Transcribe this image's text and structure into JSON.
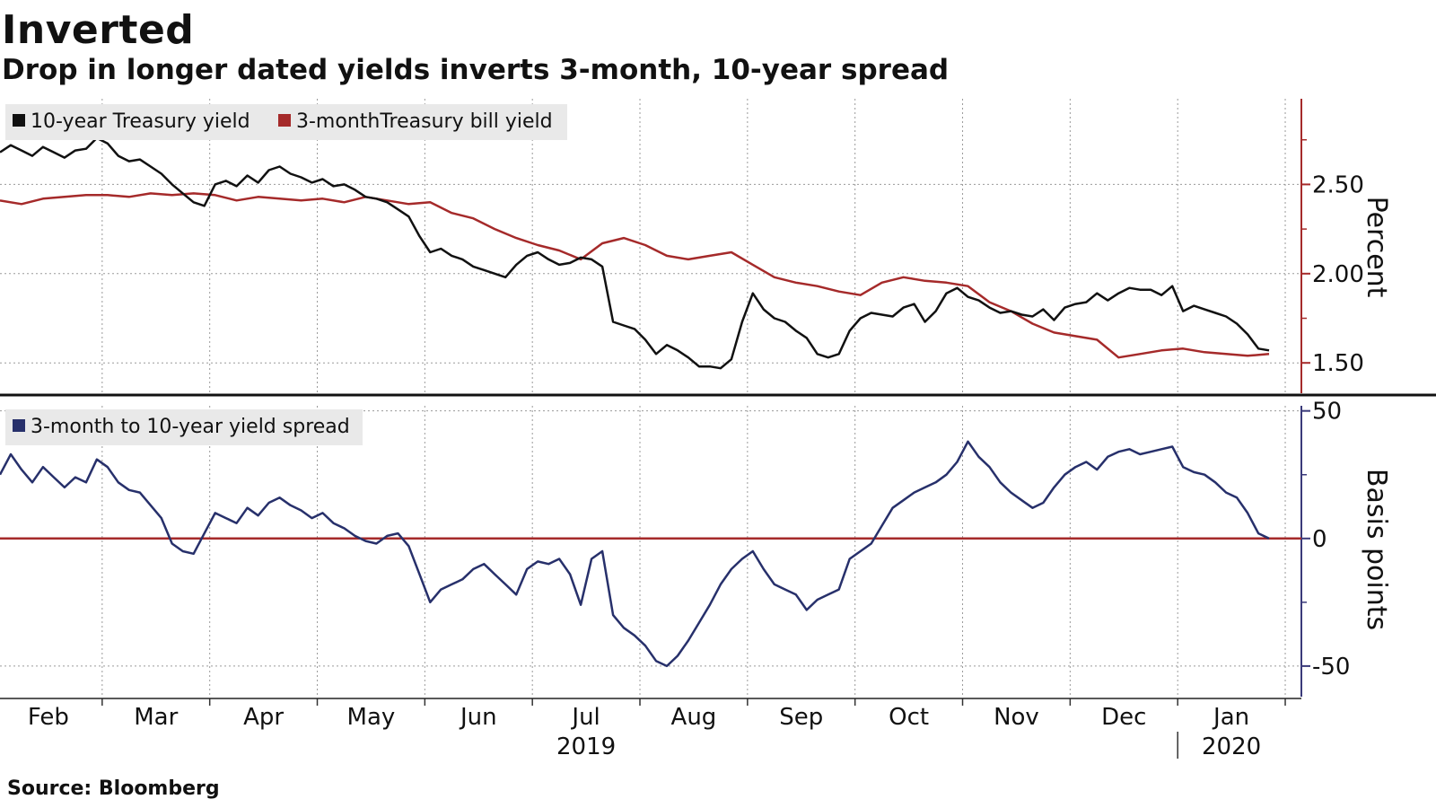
{
  "header": {
    "title": "Inverted",
    "subtitle": "Drop in longer dated yields inverts 3-month, 10-year spread"
  },
  "footer": {
    "source": "Source: Bloomberg"
  },
  "chart_data": [
    {
      "type": "line",
      "panel": "top",
      "ylabel": "Percent",
      "yticks": [
        1.5,
        2.0,
        2.5
      ],
      "ytick_labels": [
        "1.50",
        "2.00",
        "2.50"
      ],
      "ylim": [
        1.33,
        2.98
      ],
      "xlim": [
        0,
        12.1
      ],
      "axis_color": "#a52a2a",
      "x_months": [
        "Feb",
        "Mar",
        "Apr",
        "May",
        "Jun",
        "Jul",
        "Aug",
        "Sep",
        "Oct",
        "Nov",
        "Dec",
        "Jan"
      ],
      "x_years": [
        "2019",
        "2020"
      ],
      "series": [
        {
          "name": "10-year Treasury yield",
          "color": "#111111",
          "x": [
            0.0,
            0.1,
            0.2,
            0.3,
            0.4,
            0.5,
            0.6,
            0.7,
            0.8,
            0.9,
            1.0,
            1.1,
            1.2,
            1.3,
            1.4,
            1.5,
            1.6,
            1.7,
            1.8,
            1.9,
            2.0,
            2.1,
            2.2,
            2.3,
            2.4,
            2.5,
            2.6,
            2.7,
            2.8,
            2.9,
            3.0,
            3.1,
            3.2,
            3.3,
            3.4,
            3.5,
            3.6,
            3.7,
            3.8,
            3.9,
            4.0,
            4.1,
            4.2,
            4.3,
            4.4,
            4.5,
            4.6,
            4.7,
            4.8,
            4.9,
            5.0,
            5.1,
            5.2,
            5.3,
            5.4,
            5.5,
            5.6,
            5.7,
            5.8,
            5.9,
            6.0,
            6.1,
            6.2,
            6.3,
            6.4,
            6.5,
            6.6,
            6.7,
            6.8,
            6.9,
            7.0,
            7.1,
            7.2,
            7.3,
            7.4,
            7.5,
            7.6,
            7.7,
            7.8,
            7.9,
            8.0,
            8.1,
            8.2,
            8.3,
            8.4,
            8.5,
            8.6,
            8.7,
            8.8,
            8.9,
            9.0,
            9.1,
            9.2,
            9.3,
            9.4,
            9.5,
            9.6,
            9.7,
            9.8,
            9.9,
            10.0,
            10.1,
            10.2,
            10.3,
            10.4,
            10.5,
            10.6,
            10.7,
            10.8,
            10.9,
            11.0,
            11.1,
            11.2,
            11.3,
            11.4,
            11.5,
            11.6,
            11.7,
            11.8
          ],
          "values": [
            2.68,
            2.72,
            2.69,
            2.66,
            2.71,
            2.68,
            2.65,
            2.69,
            2.7,
            2.76,
            2.73,
            2.66,
            2.63,
            2.64,
            2.6,
            2.56,
            2.5,
            2.45,
            2.4,
            2.38,
            2.5,
            2.52,
            2.49,
            2.55,
            2.51,
            2.58,
            2.6,
            2.56,
            2.54,
            2.51,
            2.53,
            2.49,
            2.5,
            2.47,
            2.43,
            2.42,
            2.4,
            2.36,
            2.32,
            2.21,
            2.12,
            2.14,
            2.1,
            2.08,
            2.04,
            2.02,
            2.0,
            1.98,
            2.05,
            2.1,
            2.12,
            2.08,
            2.05,
            2.06,
            2.09,
            2.08,
            2.04,
            1.73,
            1.71,
            1.69,
            1.63,
            1.55,
            1.6,
            1.57,
            1.53,
            1.48,
            1.48,
            1.47,
            1.52,
            1.73,
            1.89,
            1.8,
            1.75,
            1.73,
            1.68,
            1.64,
            1.55,
            1.53,
            1.55,
            1.68,
            1.75,
            1.78,
            1.77,
            1.76,
            1.81,
            1.83,
            1.73,
            1.79,
            1.89,
            1.92,
            1.87,
            1.85,
            1.81,
            1.78,
            1.79,
            1.77,
            1.76,
            1.8,
            1.74,
            1.81,
            1.83,
            1.84,
            1.89,
            1.85,
            1.89,
            1.92,
            1.91,
            1.91,
            1.88,
            1.93,
            1.79,
            1.82,
            1.8,
            1.78,
            1.76,
            1.72,
            1.66,
            1.58,
            1.57
          ]
        },
        {
          "name": "3-monthTreasury bill yield",
          "color": "#a52a2a",
          "x": [
            0.0,
            0.2,
            0.4,
            0.6,
            0.8,
            1.0,
            1.2,
            1.4,
            1.6,
            1.8,
            2.0,
            2.2,
            2.4,
            2.6,
            2.8,
            3.0,
            3.2,
            3.4,
            3.6,
            3.8,
            4.0,
            4.2,
            4.4,
            4.6,
            4.8,
            5.0,
            5.2,
            5.4,
            5.6,
            5.8,
            6.0,
            6.2,
            6.4,
            6.6,
            6.8,
            7.0,
            7.2,
            7.4,
            7.6,
            7.8,
            8.0,
            8.2,
            8.4,
            8.6,
            8.8,
            9.0,
            9.2,
            9.4,
            9.6,
            9.8,
            10.0,
            10.2,
            10.4,
            10.6,
            10.8,
            11.0,
            11.2,
            11.4,
            11.6,
            11.8
          ],
          "values": [
            2.41,
            2.39,
            2.42,
            2.43,
            2.44,
            2.44,
            2.43,
            2.45,
            2.44,
            2.45,
            2.44,
            2.41,
            2.43,
            2.42,
            2.41,
            2.42,
            2.4,
            2.43,
            2.41,
            2.39,
            2.4,
            2.34,
            2.31,
            2.25,
            2.2,
            2.16,
            2.13,
            2.08,
            2.17,
            2.2,
            2.16,
            2.1,
            2.08,
            2.1,
            2.12,
            2.05,
            1.98,
            1.95,
            1.93,
            1.9,
            1.88,
            1.95,
            1.98,
            1.96,
            1.95,
            1.93,
            1.84,
            1.79,
            1.72,
            1.67,
            1.65,
            1.63,
            1.53,
            1.55,
            1.57,
            1.58,
            1.56,
            1.55,
            1.54,
            1.55
          ]
        }
      ]
    },
    {
      "type": "line",
      "panel": "bottom",
      "ylabel": "Basis points",
      "yticks": [
        -50,
        0,
        50
      ],
      "ytick_labels": [
        "-50",
        "0",
        "50"
      ],
      "ylim": [
        -62,
        52
      ],
      "xlim": [
        0,
        12.1
      ],
      "zero_line_color": "#a52a2a",
      "axis_color": "#3a3a7a",
      "series": [
        {
          "name": "3-month to 10-year yield spread",
          "color": "#27306b",
          "x": [
            0.0,
            0.1,
            0.2,
            0.3,
            0.4,
            0.5,
            0.6,
            0.7,
            0.8,
            0.9,
            1.0,
            1.1,
            1.2,
            1.3,
            1.4,
            1.5,
            1.6,
            1.7,
            1.8,
            1.9,
            2.0,
            2.1,
            2.2,
            2.3,
            2.4,
            2.5,
            2.6,
            2.7,
            2.8,
            2.9,
            3.0,
            3.1,
            3.2,
            3.3,
            3.4,
            3.5,
            3.6,
            3.7,
            3.8,
            3.9,
            4.0,
            4.1,
            4.2,
            4.3,
            4.4,
            4.5,
            4.6,
            4.7,
            4.8,
            4.9,
            5.0,
            5.1,
            5.2,
            5.3,
            5.4,
            5.5,
            5.6,
            5.7,
            5.8,
            5.9,
            6.0,
            6.1,
            6.2,
            6.3,
            6.4,
            6.5,
            6.6,
            6.7,
            6.8,
            6.9,
            7.0,
            7.1,
            7.2,
            7.3,
            7.4,
            7.5,
            7.6,
            7.7,
            7.8,
            7.9,
            8.0,
            8.1,
            8.2,
            8.3,
            8.4,
            8.5,
            8.6,
            8.7,
            8.8,
            8.9,
            9.0,
            9.1,
            9.2,
            9.3,
            9.4,
            9.5,
            9.6,
            9.7,
            9.8,
            9.9,
            10.0,
            10.1,
            10.2,
            10.3,
            10.4,
            10.5,
            10.6,
            10.7,
            10.8,
            10.9,
            11.0,
            11.1,
            11.2,
            11.3,
            11.4,
            11.5,
            11.6,
            11.7,
            11.8
          ],
          "values": [
            25,
            33,
            27,
            22,
            28,
            24,
            20,
            24,
            22,
            31,
            28,
            22,
            19,
            18,
            13,
            8,
            -2,
            -5,
            -6,
            2,
            10,
            8,
            6,
            12,
            9,
            14,
            16,
            13,
            11,
            8,
            10,
            6,
            4,
            1,
            -1,
            -2,
            1,
            2,
            -3,
            -14,
            -25,
            -20,
            -18,
            -16,
            -12,
            -10,
            -14,
            -18,
            -22,
            -12,
            -9,
            -10,
            -8,
            -14,
            -26,
            -8,
            -5,
            -30,
            -35,
            -38,
            -42,
            -48,
            -50,
            -46,
            -40,
            -33,
            -26,
            -18,
            -12,
            -8,
            -5,
            -12,
            -18,
            -20,
            -22,
            -28,
            -24,
            -22,
            -20,
            -8,
            -5,
            -2,
            5,
            12,
            15,
            18,
            20,
            22,
            25,
            30,
            38,
            32,
            28,
            22,
            18,
            15,
            12,
            14,
            20,
            25,
            28,
            30,
            27,
            32,
            34,
            35,
            33,
            34,
            35,
            36,
            28,
            26,
            25,
            22,
            18,
            16,
            10,
            2,
            0
          ]
        }
      ]
    }
  ]
}
